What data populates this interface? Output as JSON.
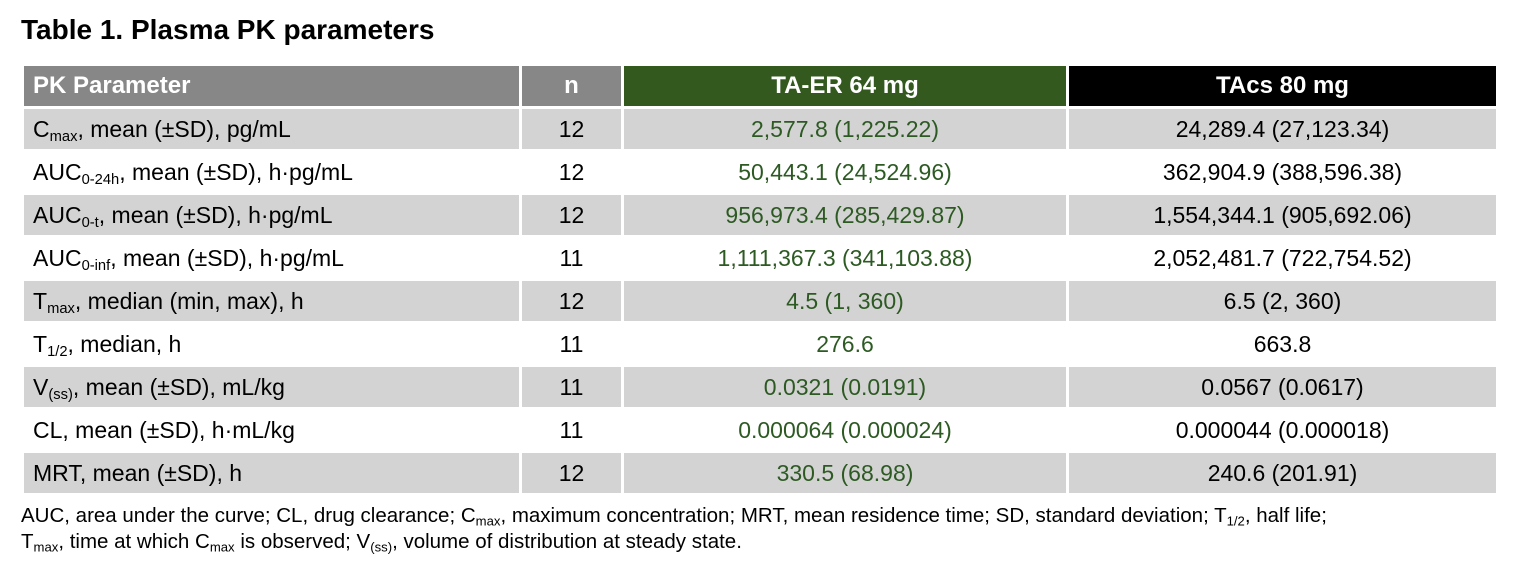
{
  "title": "Table 1. Plasma PK parameters",
  "colors": {
    "header_gray": "#878787",
    "header_green": "#33591e",
    "header_black": "#000000",
    "row_shaded": "#d3d3d3",
    "green_text": "#2d5a23"
  },
  "table": {
    "columns": [
      {
        "label": "PK Parameter"
      },
      {
        "label": "n"
      },
      {
        "label": "TA-ER 64 mg"
      },
      {
        "label": "TAcs 80 mg"
      }
    ],
    "rows": [
      {
        "base": "C",
        "sub": "max",
        "rest": ", mean (±SD), pg/mL",
        "n": "12",
        "taer": "2,577.8 (1,225.22)",
        "tacs": "24,289.4 (27,123.34)",
        "shaded": true
      },
      {
        "base": "AUC",
        "sub": "0-24h",
        "rest": ", mean (±SD), h·pg/mL",
        "n": "12",
        "taer": "50,443.1 (24,524.96)",
        "tacs": "362,904.9 (388,596.38)",
        "shaded": false
      },
      {
        "base": "AUC",
        "sub": "0-t",
        "rest": ", mean (±SD), h·pg/mL",
        "n": "12",
        "taer": "956,973.4 (285,429.87)",
        "tacs": "1,554,344.1 (905,692.06)",
        "shaded": true
      },
      {
        "base": "AUC",
        "sub": "0-inf",
        "rest": ", mean (±SD), h·pg/mL",
        "n": "11",
        "taer": "1,111,367.3 (341,103.88)",
        "tacs": "2,052,481.7 (722,754.52)",
        "shaded": false
      },
      {
        "base": "T",
        "sub": "max",
        "rest": ", median (min, max), h",
        "n": "12",
        "taer": "4.5 (1, 360)",
        "tacs": "6.5 (2, 360)",
        "shaded": true
      },
      {
        "base": "T",
        "sub": "1/2",
        "rest": ", median, h",
        "n": "11",
        "taer": "276.6",
        "tacs": "663.8",
        "shaded": false
      },
      {
        "base": "V",
        "sub": "(ss)",
        "rest": ", mean (±SD), mL/kg",
        "n": "11",
        "taer": "0.0321 (0.0191)",
        "tacs": "0.0567 (0.0617)",
        "shaded": true
      },
      {
        "base": "CL",
        "sub": "",
        "rest": ", mean (±SD), h·mL/kg",
        "n": "11",
        "taer": "0.000064 (0.000024)",
        "tacs": "0.000044 (0.000018)",
        "shaded": false
      },
      {
        "base": "MRT",
        "sub": "",
        "rest": ", mean (±SD), h",
        "n": "12",
        "taer": "330.5 (68.98)",
        "tacs": "240.6 (201.91)",
        "shaded": true
      }
    ]
  },
  "footnote_segments": [
    {
      "t": "AUC, area under the curve; CL, drug clearance; C"
    },
    {
      "t": "max",
      "sub": true
    },
    {
      "t": ", maximum concentration; MRT, mean residence time; SD, standard deviation; T"
    },
    {
      "t": "1/2",
      "sub": true
    },
    {
      "t": ", half life;"
    },
    {
      "br": true
    },
    {
      "t": "T"
    },
    {
      "t": "max",
      "sub": true
    },
    {
      "t": ", time at which C"
    },
    {
      "t": "max",
      "sub": true
    },
    {
      "t": " is observed; V"
    },
    {
      "t": "(ss)",
      "sub": true
    },
    {
      "t": ", volume of distribution at steady state."
    }
  ]
}
